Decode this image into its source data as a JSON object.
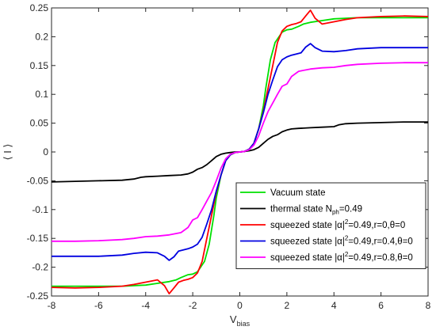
{
  "chart_data": {
    "type": "line",
    "title": "",
    "xlabel": "V",
    "xlabel_sub": "bias",
    "ylabel": "⟨ I ⟩",
    "xlim": [
      -8,
      8
    ],
    "ylim": [
      -0.25,
      0.25
    ],
    "grid": false,
    "legend_position": "lower-right",
    "xticks": [
      -8,
      -6,
      -4,
      -2,
      0,
      2,
      4,
      6,
      8
    ],
    "xtick_labels": [
      "-8",
      "-6",
      "-4",
      "-2",
      "0",
      "2",
      "4",
      "6",
      "8"
    ],
    "yticks": [
      -0.25,
      -0.2,
      -0.15,
      -0.1,
      -0.05,
      0,
      0.05,
      0.1,
      0.15,
      0.2,
      0.25
    ],
    "ytick_labels": [
      "-0.25",
      "-0.2",
      "-0.15",
      "-0.1",
      "-0.05",
      "0",
      "0.05",
      "0.1",
      "0.15",
      "0.2",
      "0.25"
    ],
    "series": [
      {
        "name": "Vacuum state",
        "legend_parts": [
          {
            "t": "Vacuum state"
          }
        ],
        "color": "#00e000",
        "x": [
          -8,
          -7,
          -6,
          -5,
          -4,
          -3.5,
          -3,
          -2.7,
          -2.5,
          -2.2,
          -2,
          -1.8,
          -1.5,
          -1.3,
          -1.1,
          -1,
          -0.8,
          -0.6,
          -0.4,
          -0.2,
          0,
          0.2,
          0.4,
          0.6,
          0.8,
          1,
          1.1,
          1.3,
          1.5,
          1.8,
          2,
          2.2,
          2.5,
          2.7,
          3,
          3.5,
          4,
          5,
          6,
          7,
          8
        ],
        "y": [
          -0.233,
          -0.233,
          -0.233,
          -0.233,
          -0.231,
          -0.228,
          -0.225,
          -0.222,
          -0.218,
          -0.213,
          -0.212,
          -0.208,
          -0.19,
          -0.16,
          -0.11,
          -0.08,
          -0.04,
          -0.015,
          -0.005,
          -0.001,
          0,
          0.001,
          0.005,
          0.015,
          0.04,
          0.08,
          0.11,
          0.16,
          0.19,
          0.208,
          0.212,
          0.213,
          0.218,
          0.222,
          0.225,
          0.228,
          0.231,
          0.233,
          0.233,
          0.233,
          0.233
        ]
      },
      {
        "name": "thermal state Nph=0.49",
        "legend_parts": [
          {
            "t": "thermal state N"
          },
          {
            "t": "ph",
            "sub": true
          },
          {
            "t": "=0.49"
          }
        ],
        "color": "#000000",
        "x": [
          -8,
          -7,
          -6,
          -5,
          -4.5,
          -4.2,
          -4,
          -3.5,
          -3,
          -2.5,
          -2.2,
          -2,
          -1.8,
          -1.6,
          -1.4,
          -1.2,
          -1,
          -0.8,
          -0.6,
          -0.4,
          -0.2,
          0,
          0.2,
          0.4,
          0.6,
          0.8,
          1,
          1.2,
          1.4,
          1.6,
          1.8,
          2,
          2.2,
          2.5,
          3,
          3.5,
          4,
          4.2,
          4.5,
          5,
          6,
          7,
          8
        ],
        "y": [
          -0.052,
          -0.051,
          -0.05,
          -0.049,
          -0.047,
          -0.044,
          -0.043,
          -0.042,
          -0.041,
          -0.04,
          -0.038,
          -0.035,
          -0.03,
          -0.027,
          -0.022,
          -0.015,
          -0.008,
          -0.004,
          -0.002,
          -0.001,
          0,
          0,
          0.001,
          0.002,
          0.004,
          0.008,
          0.015,
          0.022,
          0.027,
          0.03,
          0.035,
          0.038,
          0.04,
          0.041,
          0.042,
          0.043,
          0.044,
          0.047,
          0.049,
          0.05,
          0.051,
          0.052,
          0.052
        ]
      },
      {
        "name": "squeezed state |α|2=0.49,r=0,θ=0",
        "legend_parts": [
          {
            "t": "squeezed state |α|"
          },
          {
            "t": "2",
            "sup": true
          },
          {
            "t": "=0.49,r=0,θ=0"
          }
        ],
        "color": "#ff0000",
        "x": [
          -8,
          -7,
          -6,
          -5,
          -4.5,
          -4,
          -3.5,
          -3.2,
          -3,
          -2.8,
          -2.6,
          -2.4,
          -2.2,
          -2,
          -1.8,
          -1.6,
          -1.4,
          -1.2,
          -1,
          -0.8,
          -0.6,
          -0.4,
          -0.2,
          0,
          0.2,
          0.4,
          0.6,
          0.8,
          1,
          1.2,
          1.4,
          1.6,
          1.8,
          2,
          2.2,
          2.4,
          2.6,
          2.8,
          3,
          3.2,
          3.5,
          4,
          4.5,
          5,
          6,
          7,
          8
        ],
        "y": [
          -0.235,
          -0.236,
          -0.235,
          -0.233,
          -0.23,
          -0.226,
          -0.222,
          -0.232,
          -0.246,
          -0.236,
          -0.226,
          -0.223,
          -0.221,
          -0.218,
          -0.21,
          -0.19,
          -0.15,
          -0.11,
          -0.07,
          -0.04,
          -0.015,
          -0.005,
          -0.001,
          0,
          0.001,
          0.005,
          0.015,
          0.04,
          0.07,
          0.11,
          0.15,
          0.19,
          0.21,
          0.218,
          0.221,
          0.223,
          0.226,
          0.236,
          0.246,
          0.232,
          0.222,
          0.226,
          0.23,
          0.233,
          0.235,
          0.236,
          0.235
        ]
      },
      {
        "name": "squeezed state |α|2=0.49,r=0.4,θ=0",
        "legend_parts": [
          {
            "t": "squeezed state |α|"
          },
          {
            "t": "2",
            "sup": true
          },
          {
            "t": "=0.49,r=0.4,θ=0"
          }
        ],
        "color": "#0000e0",
        "x": [
          -8,
          -7,
          -6,
          -5,
          -4.5,
          -4,
          -3.5,
          -3.2,
          -3,
          -2.8,
          -2.6,
          -2.4,
          -2.2,
          -2,
          -1.8,
          -1.6,
          -1.4,
          -1.2,
          -1,
          -0.8,
          -0.6,
          -0.4,
          -0.2,
          0,
          0.2,
          0.4,
          0.6,
          0.8,
          1,
          1.2,
          1.4,
          1.6,
          1.8,
          2,
          2.2,
          2.4,
          2.6,
          2.8,
          3,
          3.2,
          3.5,
          4,
          4.5,
          5,
          6,
          7,
          8
        ],
        "y": [
          -0.181,
          -0.181,
          -0.181,
          -0.179,
          -0.176,
          -0.174,
          -0.175,
          -0.181,
          -0.188,
          -0.182,
          -0.172,
          -0.17,
          -0.168,
          -0.165,
          -0.16,
          -0.148,
          -0.125,
          -0.1,
          -0.068,
          -0.04,
          -0.015,
          -0.005,
          -0.001,
          0,
          0.001,
          0.005,
          0.015,
          0.04,
          0.068,
          0.1,
          0.125,
          0.148,
          0.16,
          0.165,
          0.168,
          0.17,
          0.172,
          0.182,
          0.188,
          0.181,
          0.175,
          0.174,
          0.176,
          0.179,
          0.181,
          0.181,
          0.181
        ]
      },
      {
        "name": "squeezed state |α|2=0.49,r=0.8,θ=0",
        "legend_parts": [
          {
            "t": "squeezed state |α|"
          },
          {
            "t": "2",
            "sup": true
          },
          {
            "t": "=0.49,r=0.8,θ=0"
          }
        ],
        "color": "#ff00ff",
        "x": [
          -8,
          -7,
          -6,
          -5,
          -4.5,
          -4,
          -3.5,
          -3,
          -2.5,
          -2.2,
          -2,
          -1.8,
          -1.6,
          -1.4,
          -1.2,
          -1,
          -0.8,
          -0.6,
          -0.4,
          -0.2,
          0,
          0.2,
          0.4,
          0.6,
          0.8,
          1,
          1.2,
          1.4,
          1.6,
          1.8,
          2,
          2.2,
          2.5,
          3,
          3.5,
          4,
          4.5,
          5,
          6,
          7,
          8
        ],
        "y": [
          -0.155,
          -0.155,
          -0.154,
          -0.152,
          -0.15,
          -0.147,
          -0.146,
          -0.144,
          -0.14,
          -0.131,
          -0.118,
          -0.114,
          -0.1,
          -0.085,
          -0.07,
          -0.05,
          -0.028,
          -0.012,
          -0.004,
          -0.001,
          0,
          0.001,
          0.004,
          0.012,
          0.028,
          0.05,
          0.07,
          0.085,
          0.1,
          0.114,
          0.118,
          0.131,
          0.14,
          0.144,
          0.146,
          0.147,
          0.15,
          0.152,
          0.154,
          0.155,
          0.155
        ]
      }
    ]
  }
}
